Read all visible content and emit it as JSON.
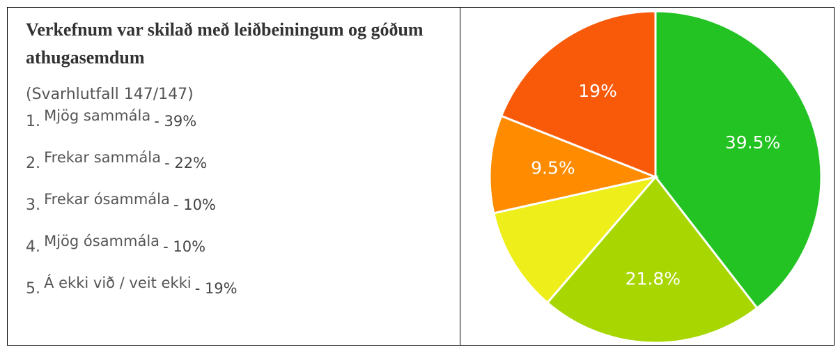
{
  "left": {
    "title": "Verkefnum var skilað með leiðbeiningum og góðum athugasemdum",
    "response_rate": "(Svarhlutfall 147/147)",
    "items": [
      {
        "number": "1.",
        "label": "Mjög sammála",
        "percent": "- 39%"
      },
      {
        "number": "2.",
        "label": "Frekar sammála",
        "percent": "- 22%"
      },
      {
        "number": "3.",
        "label": "Frekar ósammála",
        "percent": "- 10%"
      },
      {
        "number": "4.",
        "label": "Mjög ósammála",
        "percent": "- 10%"
      },
      {
        "number": "5.",
        "label": "Á ekki við / veit ekki",
        "percent": "- 19%"
      }
    ]
  },
  "chart_data": {
    "type": "pie",
    "values": [
      39.5,
      21.8,
      10.2,
      9.5,
      19
    ],
    "value_labels": [
      "39.5%",
      "21.8%",
      null,
      "9.5%",
      "19%"
    ],
    "colors": [
      "#22c322",
      "#a8d600",
      "#eeee1a",
      "#ff8c00",
      "#f85a0a"
    ]
  }
}
